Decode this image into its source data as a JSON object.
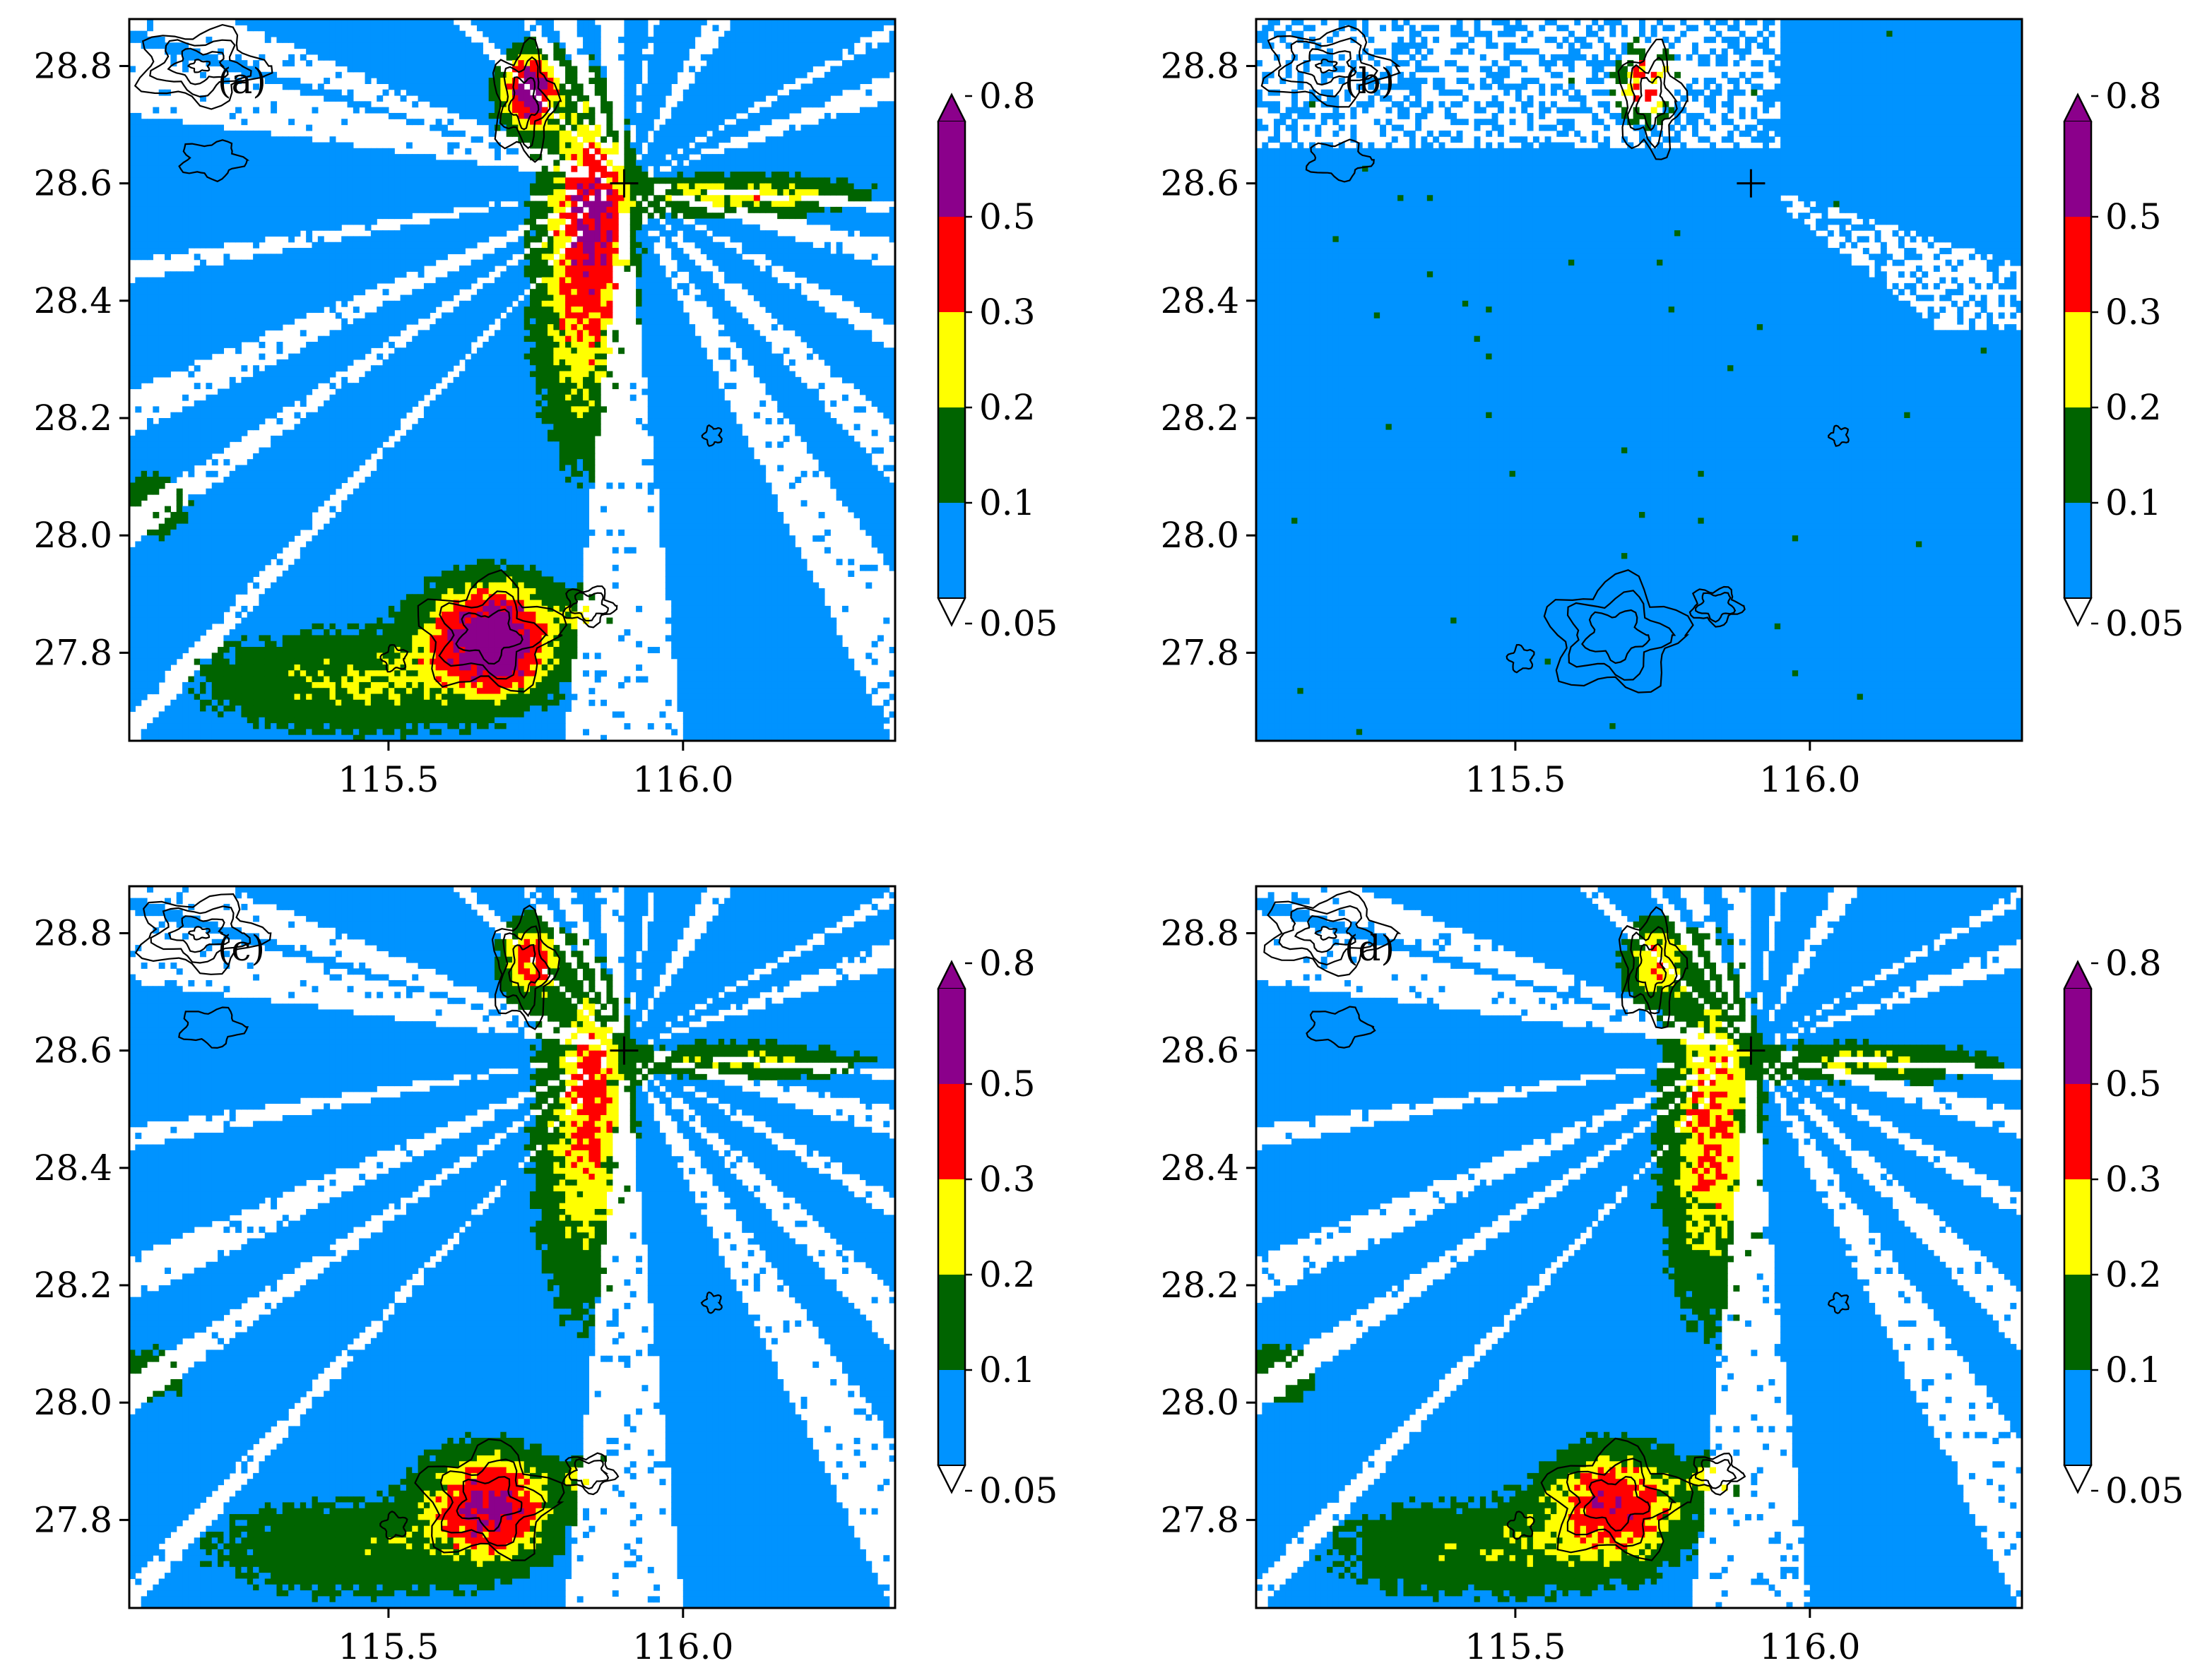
{
  "figure": {
    "layout": "2x2 grid of map panels",
    "colors": {
      "below": "#ffffff",
      "bin1": "#0093ff",
      "bin2": "#006400",
      "bin3": "#ffff00",
      "bin4": "#ff0000",
      "bin5": "#8b008b",
      "above": "#8b008b",
      "contour": "#000000",
      "background": "#ffffff"
    }
  },
  "chart_data": [
    {
      "type": "heatmap",
      "label": "(a)",
      "title": "",
      "xlabel": "",
      "ylabel": "",
      "xlim": [
        115.06,
        116.36
      ],
      "ylim": [
        27.65,
        28.88
      ],
      "xticks": [
        115.5,
        116.0
      ],
      "xtick_labels": [
        "115.5",
        "116.0"
      ],
      "yticks": [
        27.8,
        28.0,
        28.2,
        28.4,
        28.6,
        28.8
      ],
      "ytick_labels": [
        "27.8",
        "28.0",
        "28.2",
        "28.4",
        "28.6",
        "28.8"
      ],
      "colorbar": {
        "boundaries": [
          0.05,
          0.1,
          0.2,
          0.3,
          0.5,
          0.8
        ],
        "tick_labels": [
          "0.05",
          "0.1",
          "0.2",
          "0.3",
          "0.5",
          "0.8"
        ],
        "extend": "both"
      },
      "radar_site": [
        115.9,
        28.6
      ],
      "field": {
        "base": 1,
        "seed": 11,
        "green_density": 1.0,
        "red_intensity": 1.0,
        "gap_density": 1.0
      }
    },
    {
      "type": "heatmap",
      "label": "(b)",
      "title": "",
      "xlabel": "",
      "ylabel": "",
      "xlim": [
        115.06,
        116.36
      ],
      "ylim": [
        27.65,
        28.88
      ],
      "xticks": [
        115.5,
        116.0
      ],
      "xtick_labels": [
        "115.5",
        "116.0"
      ],
      "yticks": [
        27.8,
        28.0,
        28.2,
        28.4,
        28.6,
        28.8
      ],
      "ytick_labels": [
        "27.8",
        "28.0",
        "28.2",
        "28.4",
        "28.6",
        "28.8"
      ],
      "colorbar": {
        "boundaries": [
          0.05,
          0.1,
          0.2,
          0.3,
          0.5,
          0.8
        ],
        "tick_labels": [
          "0.05",
          "0.1",
          "0.2",
          "0.3",
          "0.5",
          "0.8"
        ],
        "extend": "both"
      },
      "radar_site": [
        115.9,
        28.6
      ],
      "field": {
        "base": 1,
        "seed": 23,
        "green_density": 0.02,
        "red_intensity": 0.0,
        "gap_density": 0.15
      }
    },
    {
      "type": "heatmap",
      "label": "(c)",
      "title": "",
      "xlabel": "",
      "ylabel": "",
      "xlim": [
        115.06,
        116.36
      ],
      "ylim": [
        27.65,
        28.88
      ],
      "xticks": [
        115.5,
        116.0
      ],
      "xtick_labels": [
        "115.5",
        "116.0"
      ],
      "yticks": [
        27.8,
        28.0,
        28.2,
        28.4,
        28.6,
        28.8
      ],
      "ytick_labels": [
        "27.8",
        "28.0",
        "28.2",
        "28.4",
        "28.6",
        "28.8"
      ],
      "colorbar": {
        "boundaries": [
          0.05,
          0.1,
          0.2,
          0.3,
          0.5,
          0.8
        ],
        "tick_labels": [
          "0.05",
          "0.1",
          "0.2",
          "0.3",
          "0.5",
          "0.8"
        ],
        "extend": "both"
      },
      "radar_site": [
        115.9,
        28.6
      ],
      "field": {
        "base": 1,
        "seed": 37,
        "green_density": 0.75,
        "red_intensity": 0.45,
        "gap_density": 1.0
      }
    },
    {
      "type": "heatmap",
      "label": "(d)",
      "title": "",
      "xlabel": "",
      "ylabel": "",
      "xlim": [
        115.06,
        116.36
      ],
      "ylim": [
        27.65,
        28.88
      ],
      "xticks": [
        115.5,
        116.0
      ],
      "xtick_labels": [
        "115.5",
        "116.0"
      ],
      "yticks": [
        27.8,
        28.0,
        28.2,
        28.4,
        28.6,
        28.8
      ],
      "ytick_labels": [
        "27.8",
        "28.0",
        "28.2",
        "28.4",
        "28.6",
        "28.8"
      ],
      "colorbar": {
        "boundaries": [
          0.05,
          0.1,
          0.2,
          0.3,
          0.5,
          0.8
        ],
        "tick_labels": [
          "0.05",
          "0.1",
          "0.2",
          "0.3",
          "0.5",
          "0.8"
        ],
        "extend": "both"
      },
      "radar_site": [
        115.9,
        28.6
      ],
      "field": {
        "base": 1,
        "seed": 53,
        "green_density": 0.85,
        "red_intensity": 0.1,
        "gap_density": 1.0
      }
    }
  ]
}
